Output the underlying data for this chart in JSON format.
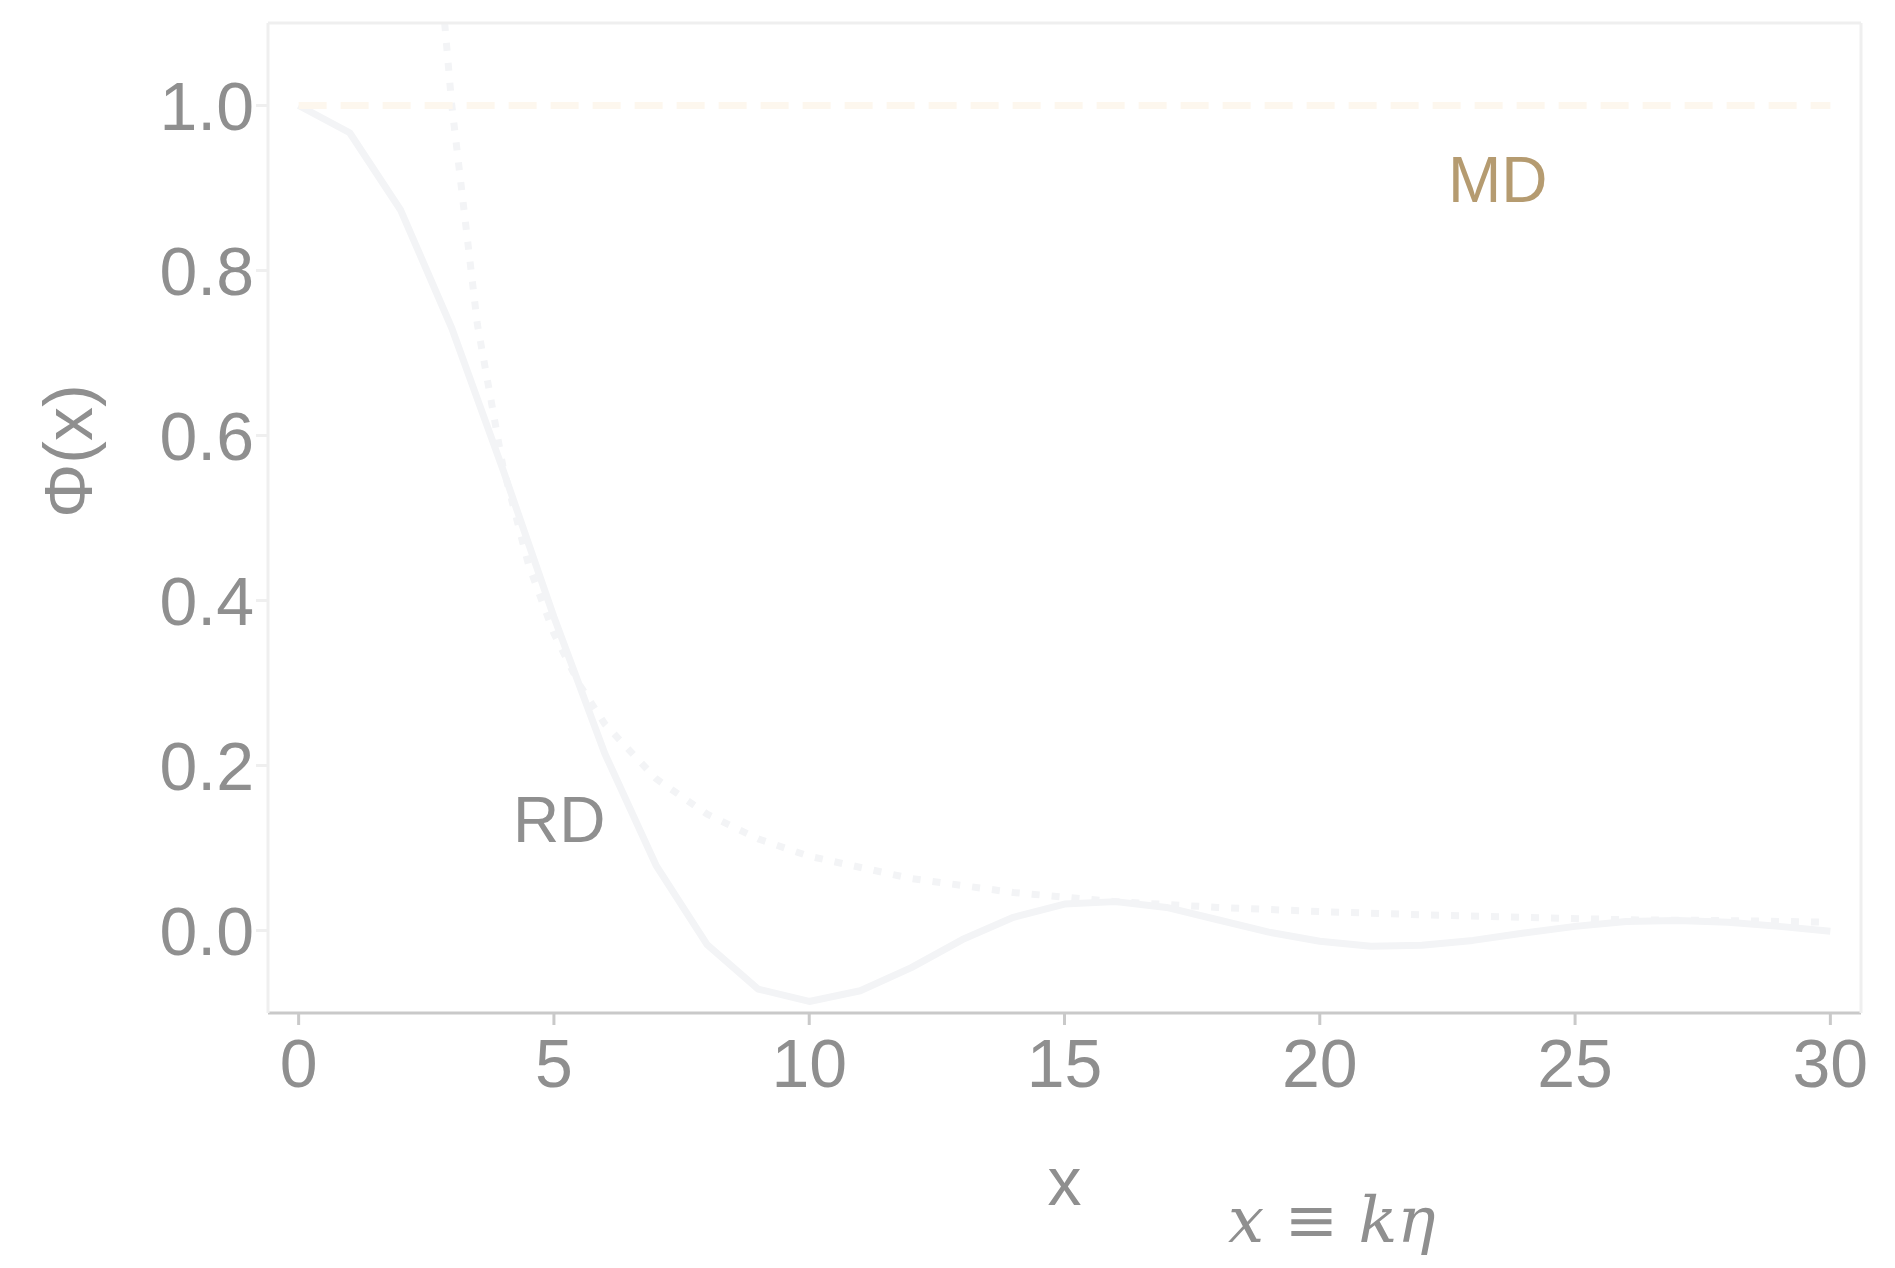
{
  "chart_data": {
    "type": "line",
    "xlabel": "x",
    "ylabel": "Φ(x)",
    "xlim": [
      -0.6,
      30.6
    ],
    "xticks": [
      0,
      5,
      10,
      15,
      20,
      25,
      30
    ],
    "ylim": [
      -0.1,
      1.1
    ],
    "yticks": [
      {
        "value": 0,
        "label": "0.0"
      },
      0.2,
      0.4,
      0.6,
      0.8,
      {
        "value": 1,
        "label": "1.0"
      }
    ],
    "grid": false,
    "marker": "none",
    "annotations": [
      "MD",
      "RD",
      "x ≡ kη"
    ],
    "series": [
      {
        "color": "#f3f4f6",
        "line_style": "solid",
        "x": [
          0,
          1,
          2,
          3,
          4,
          5,
          6,
          7,
          8,
          9,
          10,
          11,
          12,
          13,
          14,
          15,
          16,
          17,
          18,
          19,
          20,
          21,
          22,
          23,
          24,
          25,
          26,
          27,
          28,
          29,
          30
        ],
        "values": [
          1,
          0.967,
          0.873,
          0.73,
          0.559,
          0.38,
          0.214,
          0.079,
          -0.017,
          -0.071,
          -0.086,
          -0.073,
          -0.045,
          -0.011,
          0.016,
          0.032,
          0.035,
          0.028,
          0.013,
          -0.002,
          -0.013,
          -0.019,
          -0.018,
          -0.012,
          -0.003,
          0.005,
          0.011,
          0.012,
          0.01,
          0.005,
          -0.001
        ]
      },
      {
        "color": "#f3f4f6",
        "line_style": "dotted",
        "x": [
          2.86,
          3,
          3.5,
          4,
          4.5,
          5,
          5.5,
          6,
          7,
          8,
          9,
          10,
          12,
          14,
          16,
          18,
          20,
          22,
          24,
          26,
          28,
          30
        ],
        "values": [
          1.1,
          1.0,
          0.735,
          0.563,
          0.444,
          0.36,
          0.298,
          0.25,
          0.184,
          0.141,
          0.111,
          0.09,
          0.063,
          0.046,
          0.035,
          0.028,
          0.023,
          0.019,
          0.016,
          0.013,
          0.012,
          0.01
        ]
      },
      {
        "color": "#fdf7ee",
        "line_style": "dashed",
        "x": [
          0,
          30
        ],
        "values": [
          1,
          1
        ]
      }
    ]
  }
}
